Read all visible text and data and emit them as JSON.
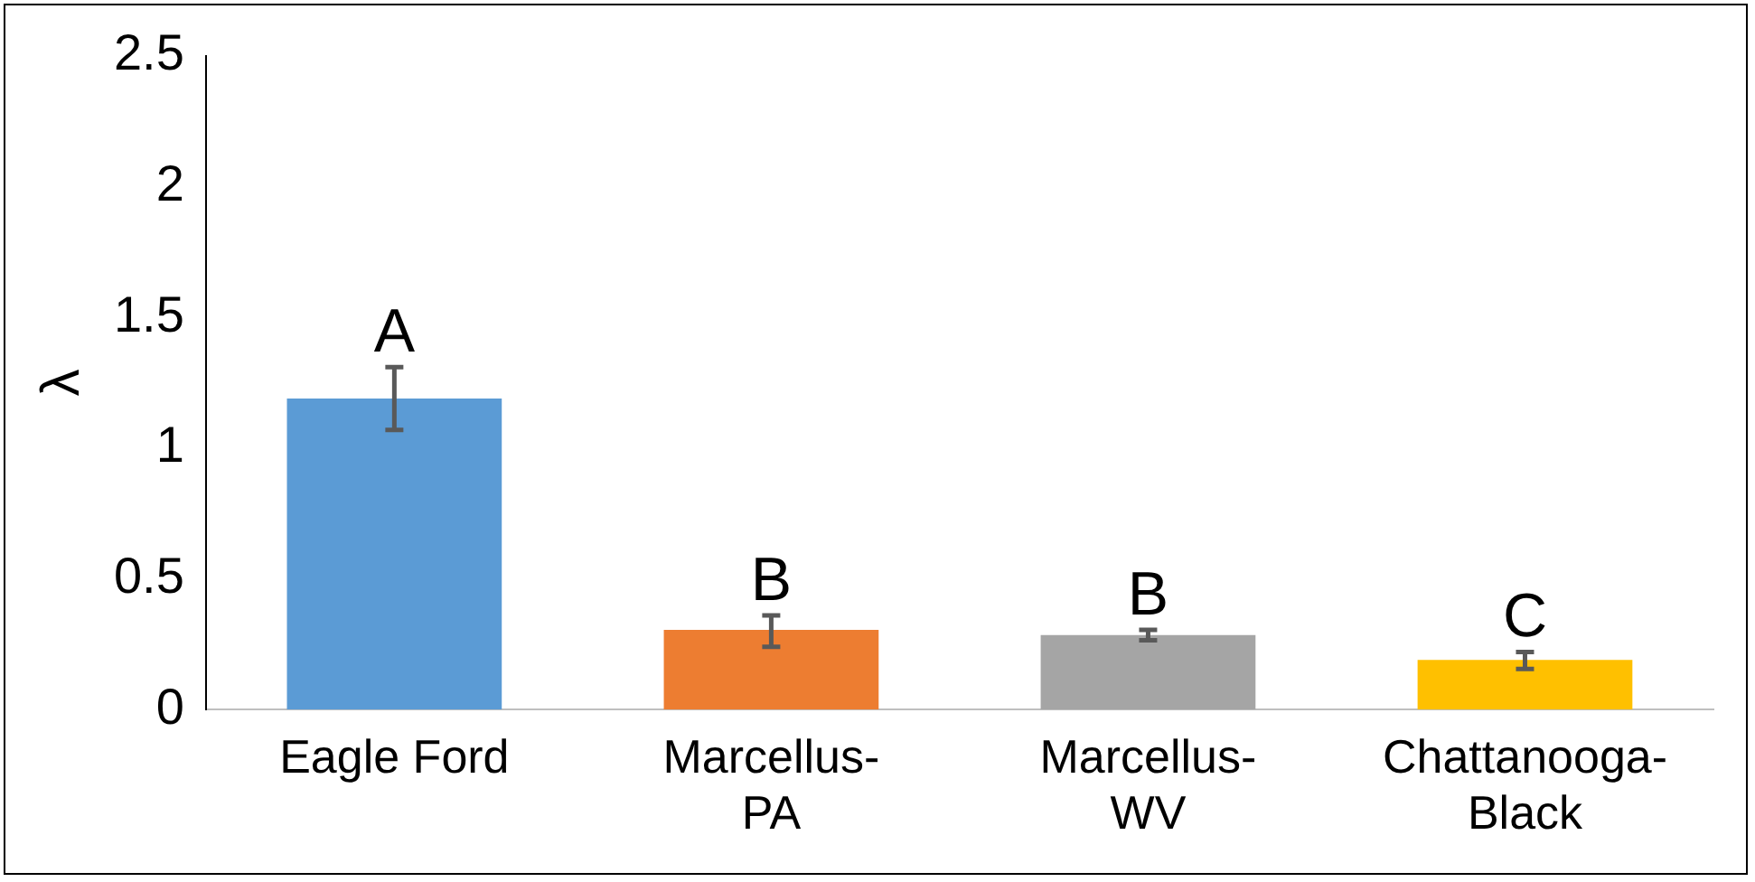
{
  "chart_data": {
    "type": "bar",
    "ylabel": "λ",
    "categories": [
      "Eagle Ford",
      "Marcellus-PA",
      "Marcellus-WV",
      "Chattanooga-Black"
    ],
    "values": [
      1.19,
      0.305,
      0.285,
      0.19
    ],
    "colors": [
      "#5b9bd5",
      "#ed7d31",
      "#a5a5a5",
      "#ffc000"
    ],
    "errors": [
      [
        1.07,
        1.31
      ],
      [
        0.24,
        0.36
      ],
      [
        0.265,
        0.305
      ],
      [
        0.155,
        0.22
      ]
    ],
    "annotations": [
      {
        "text": "A",
        "x": "Eagle Ford",
        "y": 1.31
      },
      {
        "text": "B",
        "x": "Marcellus-PA",
        "y": 0.36
      },
      {
        "text": "B",
        "x": "Marcellus-WV",
        "y": 0.305
      },
      {
        "text": "C",
        "x": "Chattanooga-Black",
        "y": 0.22
      }
    ],
    "ylim": [
      0,
      2.5
    ],
    "yticks": [
      0,
      0.5,
      1,
      1.5,
      2,
      2.5
    ],
    "grid": false,
    "legend": false
  }
}
